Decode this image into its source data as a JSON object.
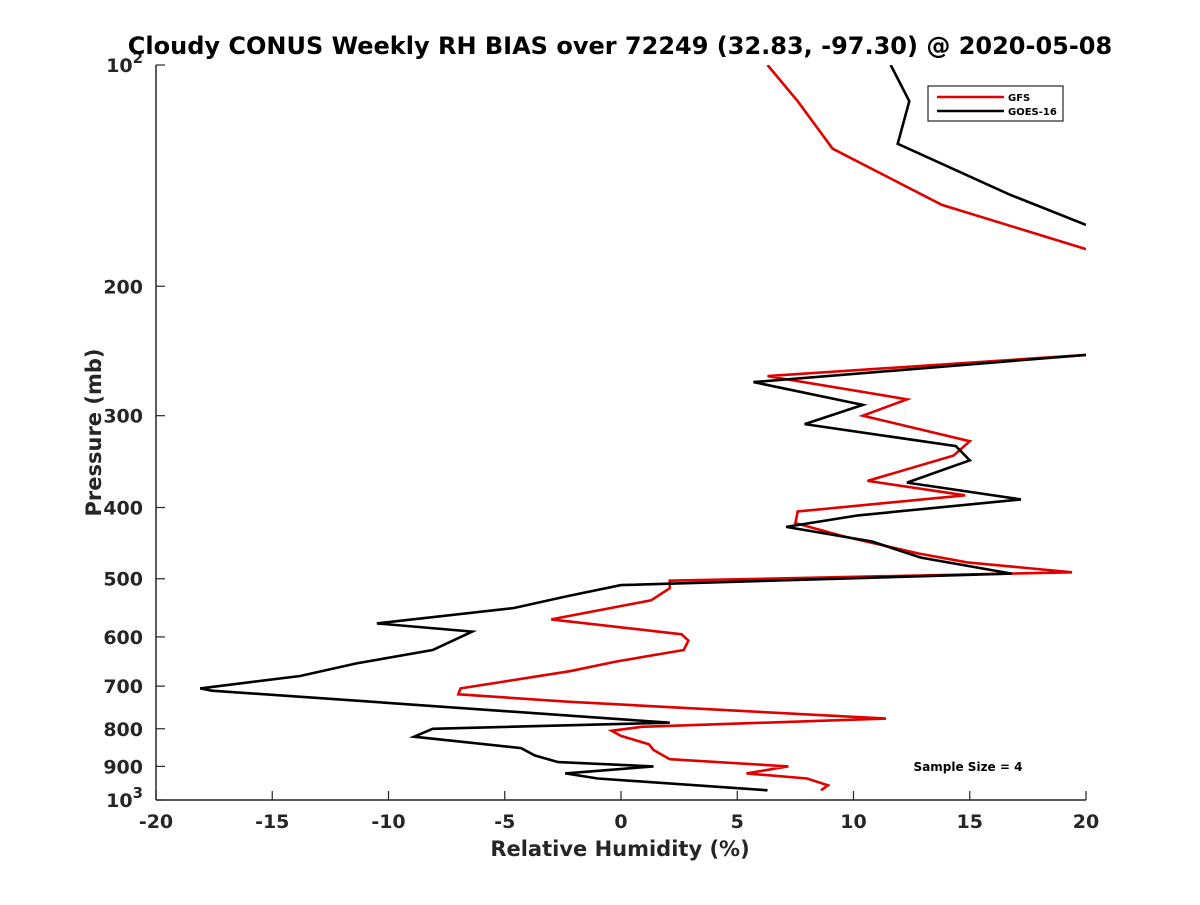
{
  "chart_data": {
    "type": "line",
    "title": "Cloudy CONUS Weekly RH BIAS over 72249 (32.83, -97.30) @ 2020-05-08",
    "xlabel": "Relative Humidity (%)",
    "ylabel": "Pressure (mb)",
    "xlim": [
      -20,
      20
    ],
    "ylim": [
      100,
      1000
    ],
    "y_scale": "log",
    "y_reversed": true,
    "grid": false,
    "legend_position": "top-right",
    "x_ticks": [
      -20,
      -15,
      -10,
      -5,
      0,
      5,
      10,
      15,
      20
    ],
    "x_tick_labels": [
      "-20",
      "-15",
      "-10",
      "-5",
      "0",
      "5",
      "10",
      "15",
      "20"
    ],
    "y_ticks": [
      200,
      300,
      400,
      500,
      600,
      700,
      800,
      900
    ],
    "y_tick_labels": [
      "200",
      "300",
      "400",
      "500",
      "600",
      "700",
      "800",
      "900"
    ],
    "y_end_ticks": [
      {
        "value": 100,
        "base": "10",
        "exp": "2"
      },
      {
        "value": 1000,
        "base": "10",
        "exp": "3"
      }
    ],
    "annotation": "Sample Size = 4",
    "series": [
      {
        "name": "GFS",
        "color": "#e00000",
        "segments": [
          [
            [
              6.3,
              100
            ],
            [
              7.6,
              112
            ],
            [
              9.1,
              130
            ],
            [
              13.8,
              155
            ],
            [
              20.0,
              178
            ]
          ],
          [
            [
              20.0,
              248
            ],
            [
              6.3,
              265
            ],
            [
              12.3,
              285
            ],
            [
              10.4,
              300
            ],
            [
              15.0,
              325
            ],
            [
              14.3,
              340
            ],
            [
              10.6,
              368
            ],
            [
              14.8,
              385
            ],
            [
              7.6,
              405
            ],
            [
              7.5,
              420
            ],
            [
              9.6,
              438
            ],
            [
              12.8,
              462
            ],
            [
              14.9,
              475
            ],
            [
              19.4,
              490
            ],
            [
              2.1,
              503
            ],
            [
              2.1,
              515
            ],
            [
              1.3,
              535
            ],
            [
              -3.0,
              568
            ],
            [
              2.6,
              595
            ],
            [
              2.9,
              607
            ],
            [
              2.7,
              625
            ],
            [
              -0.2,
              648
            ],
            [
              -2.2,
              668
            ],
            [
              -6.9,
              705
            ],
            [
              -7.0,
              718
            ],
            [
              -2.3,
              735
            ],
            [
              11.4,
              775
            ],
            [
              0.9,
              795
            ],
            [
              -0.4,
              805
            ],
            [
              0.0,
              818
            ],
            [
              1.2,
              840
            ],
            [
              1.4,
              855
            ],
            [
              2.1,
              880
            ],
            [
              7.2,
              900
            ],
            [
              5.4,
              920
            ],
            [
              8.0,
              935
            ],
            [
              8.9,
              955
            ],
            [
              8.6,
              970
            ]
          ]
        ]
      },
      {
        "name": "GOES-16",
        "color": "#000000",
        "segments": [
          [
            [
              11.6,
              100
            ],
            [
              12.4,
              112
            ],
            [
              11.9,
              128
            ],
            [
              16.7,
              150
            ],
            [
              20.0,
              165
            ]
          ],
          [
            [
              20.0,
              248
            ],
            [
              5.7,
              270
            ],
            [
              10.4,
              290
            ],
            [
              7.9,
              308
            ],
            [
              14.4,
              330
            ],
            [
              15.0,
              345
            ],
            [
              12.3,
              370
            ],
            [
              17.2,
              390
            ],
            [
              10.2,
              410
            ],
            [
              7.1,
              425
            ],
            [
              10.8,
              445
            ],
            [
              12.9,
              468
            ],
            [
              16.8,
              492
            ],
            [
              0.0,
              510
            ],
            [
              -2.3,
              528
            ],
            [
              -4.6,
              548
            ],
            [
              -10.5,
              575
            ],
            [
              -6.4,
              590
            ],
            [
              -8.1,
              625
            ],
            [
              -11.4,
              652
            ],
            [
              -13.8,
              678
            ],
            [
              -18.1,
              705
            ],
            [
              -17.6,
              710
            ],
            [
              -12.6,
              728
            ],
            [
              2.1,
              785
            ],
            [
              -8.1,
              800
            ],
            [
              -8.9,
              820
            ],
            [
              -4.3,
              850
            ],
            [
              -3.7,
              870
            ],
            [
              -2.7,
              888
            ],
            [
              1.4,
              900
            ],
            [
              -2.4,
              920
            ],
            [
              -1.0,
              935
            ],
            [
              6.3,
              970
            ]
          ]
        ]
      }
    ]
  }
}
